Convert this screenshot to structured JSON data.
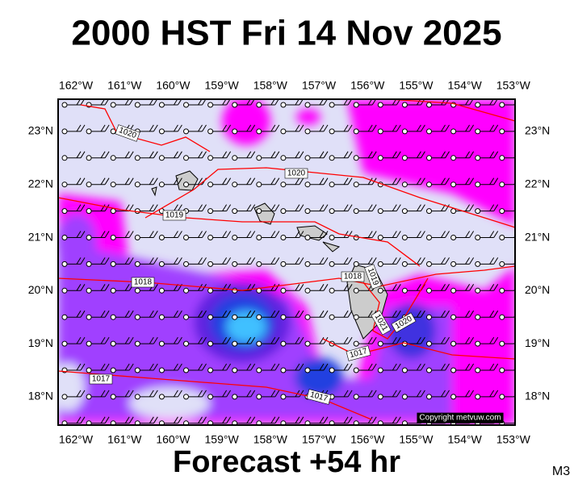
{
  "header": {
    "title": "2000 HST Fri 14 Nov 2025"
  },
  "map": {
    "lon_labels": [
      "162°W",
      "161°W",
      "160°W",
      "159°W",
      "158°W",
      "157°W",
      "156°W",
      "155°W",
      "154°W",
      "153°W"
    ],
    "lat_labels": [
      "23°N",
      "22°N",
      "21°N",
      "20°N",
      "19°N",
      "18°N"
    ],
    "isobar_labels": [
      "1020",
      "1020",
      "1019",
      "1018",
      "1018",
      "1019",
      "1021",
      "1020",
      "1017",
      "1017",
      "1017"
    ],
    "copyright": "Copyright metvuw.com"
  },
  "footer": {
    "forecast": "Forecast +54 hr",
    "code": "M3"
  }
}
